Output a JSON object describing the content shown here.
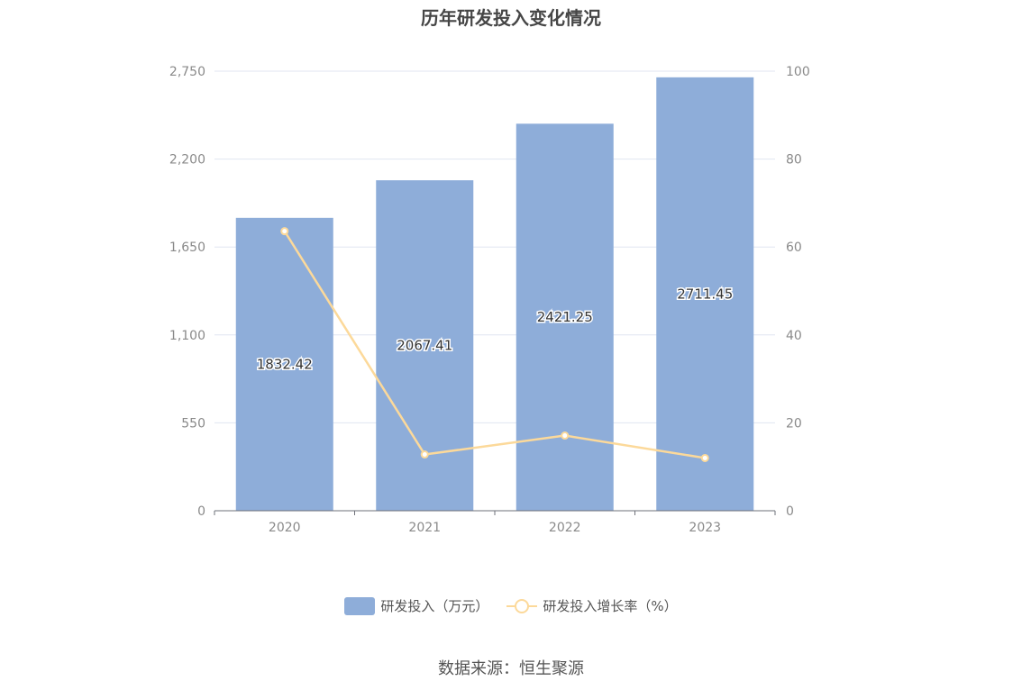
{
  "title": "历年研发投入变化情况",
  "source": "数据来源：恒生聚源",
  "colors": {
    "bar": "#8eadd9",
    "line": "#fcd99a",
    "grid": "#e0e6f1",
    "axis": "#6e7079"
  },
  "chart_data": {
    "type": "bar",
    "categories": [
      "2020",
      "2021",
      "2022",
      "2023"
    ],
    "series": [
      {
        "name": "研发投入（万元）",
        "type": "bar",
        "axis": "left",
        "values": [
          1832.42,
          2067.41,
          2421.25,
          2711.45
        ],
        "labels": [
          "1832.42",
          "2067.41",
          "2421.25",
          "2711.45"
        ]
      },
      {
        "name": "研发投入增长率（%）",
        "type": "line",
        "axis": "right",
        "values": [
          63.6,
          12.8,
          17.1,
          12.0
        ]
      }
    ],
    "y_left": {
      "min": 0,
      "max": 2750,
      "ticks": [
        0,
        550,
        1100,
        1650,
        2200,
        2750
      ],
      "tick_labels": [
        "0",
        "550",
        "1,100",
        "1,650",
        "2,200",
        "2,750"
      ]
    },
    "y_right": {
      "min": 0,
      "max": 100,
      "ticks": [
        0,
        20,
        40,
        60,
        80,
        100
      ],
      "tick_labels": [
        "0",
        "20",
        "40",
        "60",
        "80",
        "100"
      ]
    },
    "grid": true,
    "legend_position": "bottom"
  }
}
